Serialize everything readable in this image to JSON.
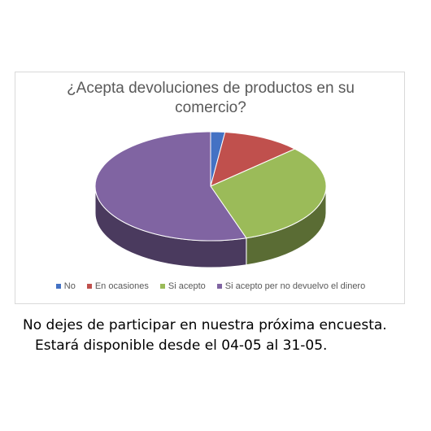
{
  "chart_data": {
    "type": "pie",
    "title": "¿Acepta devoluciones de productos en su comercio?",
    "categories": [
      "No",
      "En ocasiones",
      "Si acepto",
      "Si acepto per no devuelvo el dinero"
    ],
    "values": [
      2,
      11,
      32,
      55
    ],
    "colors": [
      "#4472c4",
      "#c0504d",
      "#9bbb59",
      "#8064a2"
    ],
    "legend_position": "bottom",
    "style": "3d"
  },
  "footer": {
    "line1": "No dejes de participar en nuestra próxima encuesta.",
    "line2": "Estará disponible desde el 04-05 al 31-05."
  }
}
